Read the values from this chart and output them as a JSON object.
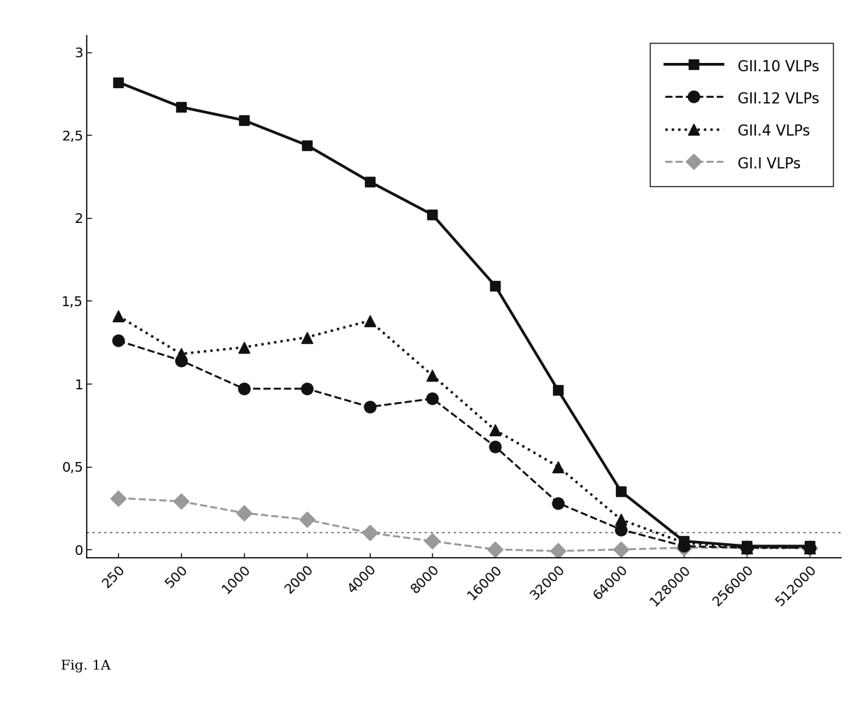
{
  "x_labels": [
    "250",
    "500",
    "1000",
    "2000",
    "4000",
    "8000",
    "16000",
    "32000",
    "64000",
    "128000",
    "256000",
    "512000"
  ],
  "x_values": [
    250,
    500,
    1000,
    2000,
    4000,
    8000,
    16000,
    32000,
    64000,
    128000,
    256000,
    512000
  ],
  "series": [
    {
      "label": "GII.10 VLPs",
      "y": [
        2.82,
        2.67,
        2.59,
        2.44,
        2.22,
        2.02,
        1.59,
        0.96,
        0.35,
        0.05,
        0.02,
        0.02
      ],
      "color": "#111111",
      "linestyle": "solid",
      "linewidth": 2.8,
      "marker": "s",
      "markersize": 10,
      "zorder": 5
    },
    {
      "label": "GII.12 VLPs",
      "y": [
        1.26,
        1.14,
        0.97,
        0.97,
        0.86,
        0.91,
        0.62,
        0.28,
        0.12,
        0.02,
        0.01,
        0.01
      ],
      "color": "#111111",
      "linestyle": "dashed",
      "linewidth": 2.0,
      "marker": "o",
      "markersize": 12,
      "zorder": 4
    },
    {
      "label": "GII.4 VLPs",
      "y": [
        1.41,
        1.18,
        1.22,
        1.28,
        1.38,
        1.05,
        0.72,
        0.5,
        0.18,
        0.04,
        0.01,
        0.01
      ],
      "color": "#111111",
      "linestyle": "dotted",
      "linewidth": 2.5,
      "marker": "^",
      "markersize": 11,
      "zorder": 3
    },
    {
      "label": "GI.I VLPs",
      "y": [
        0.31,
        0.29,
        0.22,
        0.18,
        0.1,
        0.05,
        0.0,
        -0.01,
        0.0,
        0.01,
        0.01,
        0.01
      ],
      "color": "#999999",
      "linestyle": "dashed",
      "linewidth": 2.0,
      "marker": "D",
      "markersize": 11,
      "zorder": 2
    }
  ],
  "cutoff_line": 0.1,
  "cutoff_linestyle": "dotted",
  "cutoff_color": "#666666",
  "cutoff_linewidth": 1.2,
  "ylim": [
    -0.05,
    3.1
  ],
  "yticks": [
    0,
    0.5,
    1.0,
    1.5,
    2.0,
    2.5,
    3.0
  ],
  "ytick_labels": [
    "0",
    "0,5",
    "1",
    "1,5",
    "2",
    "2,5",
    "3"
  ],
  "figure_caption": "Fig. 1A",
  "background_color": "#ffffff",
  "legend_fontsize": 15,
  "tick_fontsize": 14,
  "caption_fontsize": 14
}
